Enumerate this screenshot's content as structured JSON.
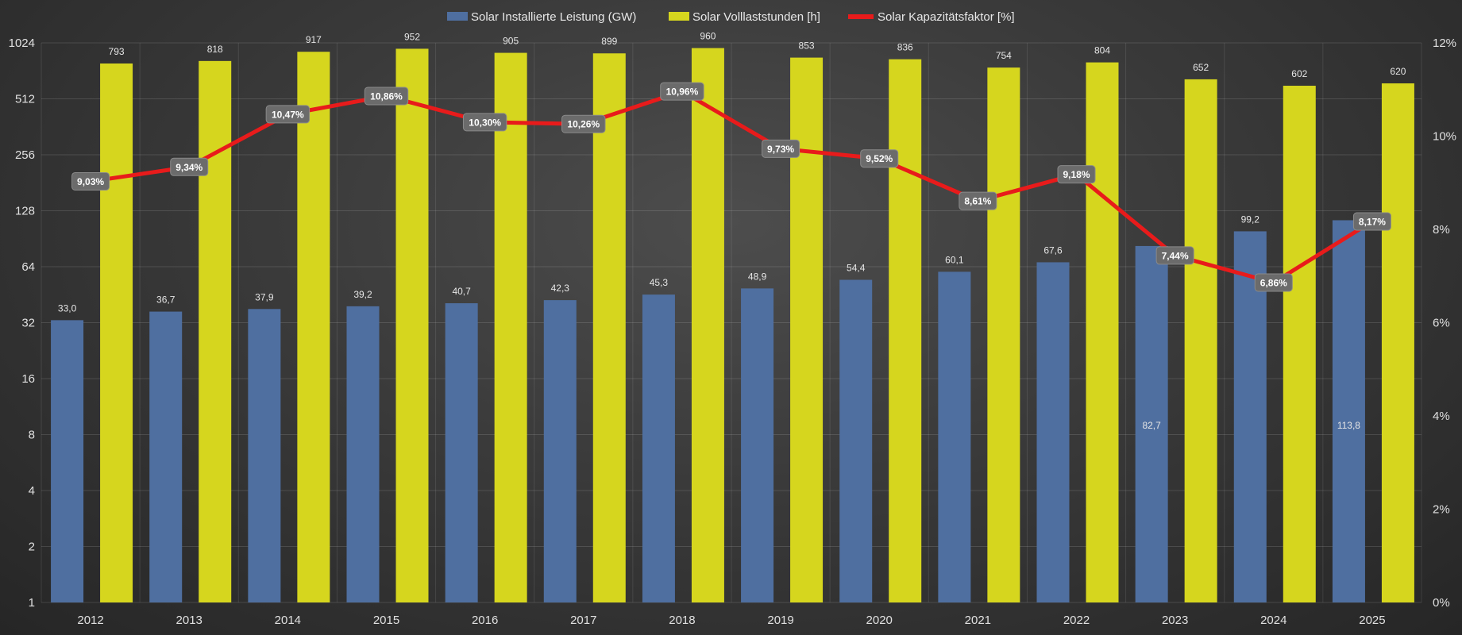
{
  "chart_data": {
    "type": "bar",
    "categories": [
      "2012",
      "2013",
      "2014",
      "2015",
      "2016",
      "2017",
      "2018",
      "2019",
      "2020",
      "2021",
      "2022",
      "2023",
      "2024",
      "2025"
    ],
    "series": [
      {
        "name": "Solar Installierte Leistung (GW)",
        "color": "#4f6fa0",
        "axis": "left-log2",
        "values": [
          33.0,
          36.7,
          37.9,
          39.2,
          40.7,
          42.3,
          45.3,
          48.9,
          54.4,
          60.1,
          67.6,
          82.7,
          99.2,
          113.8
        ],
        "labels": [
          "33,0",
          "36,7",
          "37,9",
          "39,2",
          "40,7",
          "42,3",
          "45,3",
          "48,9",
          "54,4",
          "60,1",
          "67,6",
          "82,7",
          "99,2",
          "113,8"
        ]
      },
      {
        "name": "Solar Volllaststunden [h]",
        "color": "#d6d61e",
        "axis": "left-log2",
        "values": [
          793,
          818,
          917,
          952,
          905,
          899,
          960,
          853,
          836,
          754,
          804,
          652,
          602,
          620
        ],
        "labels": [
          "793",
          "818",
          "917",
          "952",
          "905",
          "899",
          "960",
          "853",
          "836",
          "754",
          "804",
          "652",
          "602",
          "620"
        ]
      },
      {
        "name": "Solar Kapazitätsfaktor [%]",
        "color": "#e81b1b",
        "type": "line",
        "axis": "right",
        "values": [
          9.03,
          9.34,
          10.47,
          10.86,
          10.3,
          10.26,
          10.96,
          9.73,
          9.52,
          8.61,
          9.18,
          7.44,
          6.86,
          8.17
        ],
        "labels": [
          "9,03%",
          "9,34%",
          "10,47%",
          "10,86%",
          "10,30%",
          "10,26%",
          "10,96%",
          "9,73%",
          "9,52%",
          "8,61%",
          "9,18%",
          "7,44%",
          "6,86%",
          "8,17%"
        ]
      }
    ],
    "y_left": {
      "scale": "log2",
      "range": [
        1,
        1024
      ],
      "ticks": [
        1,
        2,
        4,
        8,
        16,
        32,
        64,
        128,
        256,
        512,
        1024
      ],
      "tick_labels": [
        "1",
        "2",
        "4",
        "8",
        "16",
        "32",
        "64",
        "128",
        "256",
        "512",
        "1024"
      ]
    },
    "y_right": {
      "range": [
        0,
        12
      ],
      "ticks": [
        0,
        2,
        4,
        6,
        8,
        10,
        12
      ],
      "tick_labels": [
        "0%",
        "2%",
        "4%",
        "6%",
        "8%",
        "10%",
        "12%"
      ]
    },
    "legend_position": "top-center",
    "grid": true
  }
}
